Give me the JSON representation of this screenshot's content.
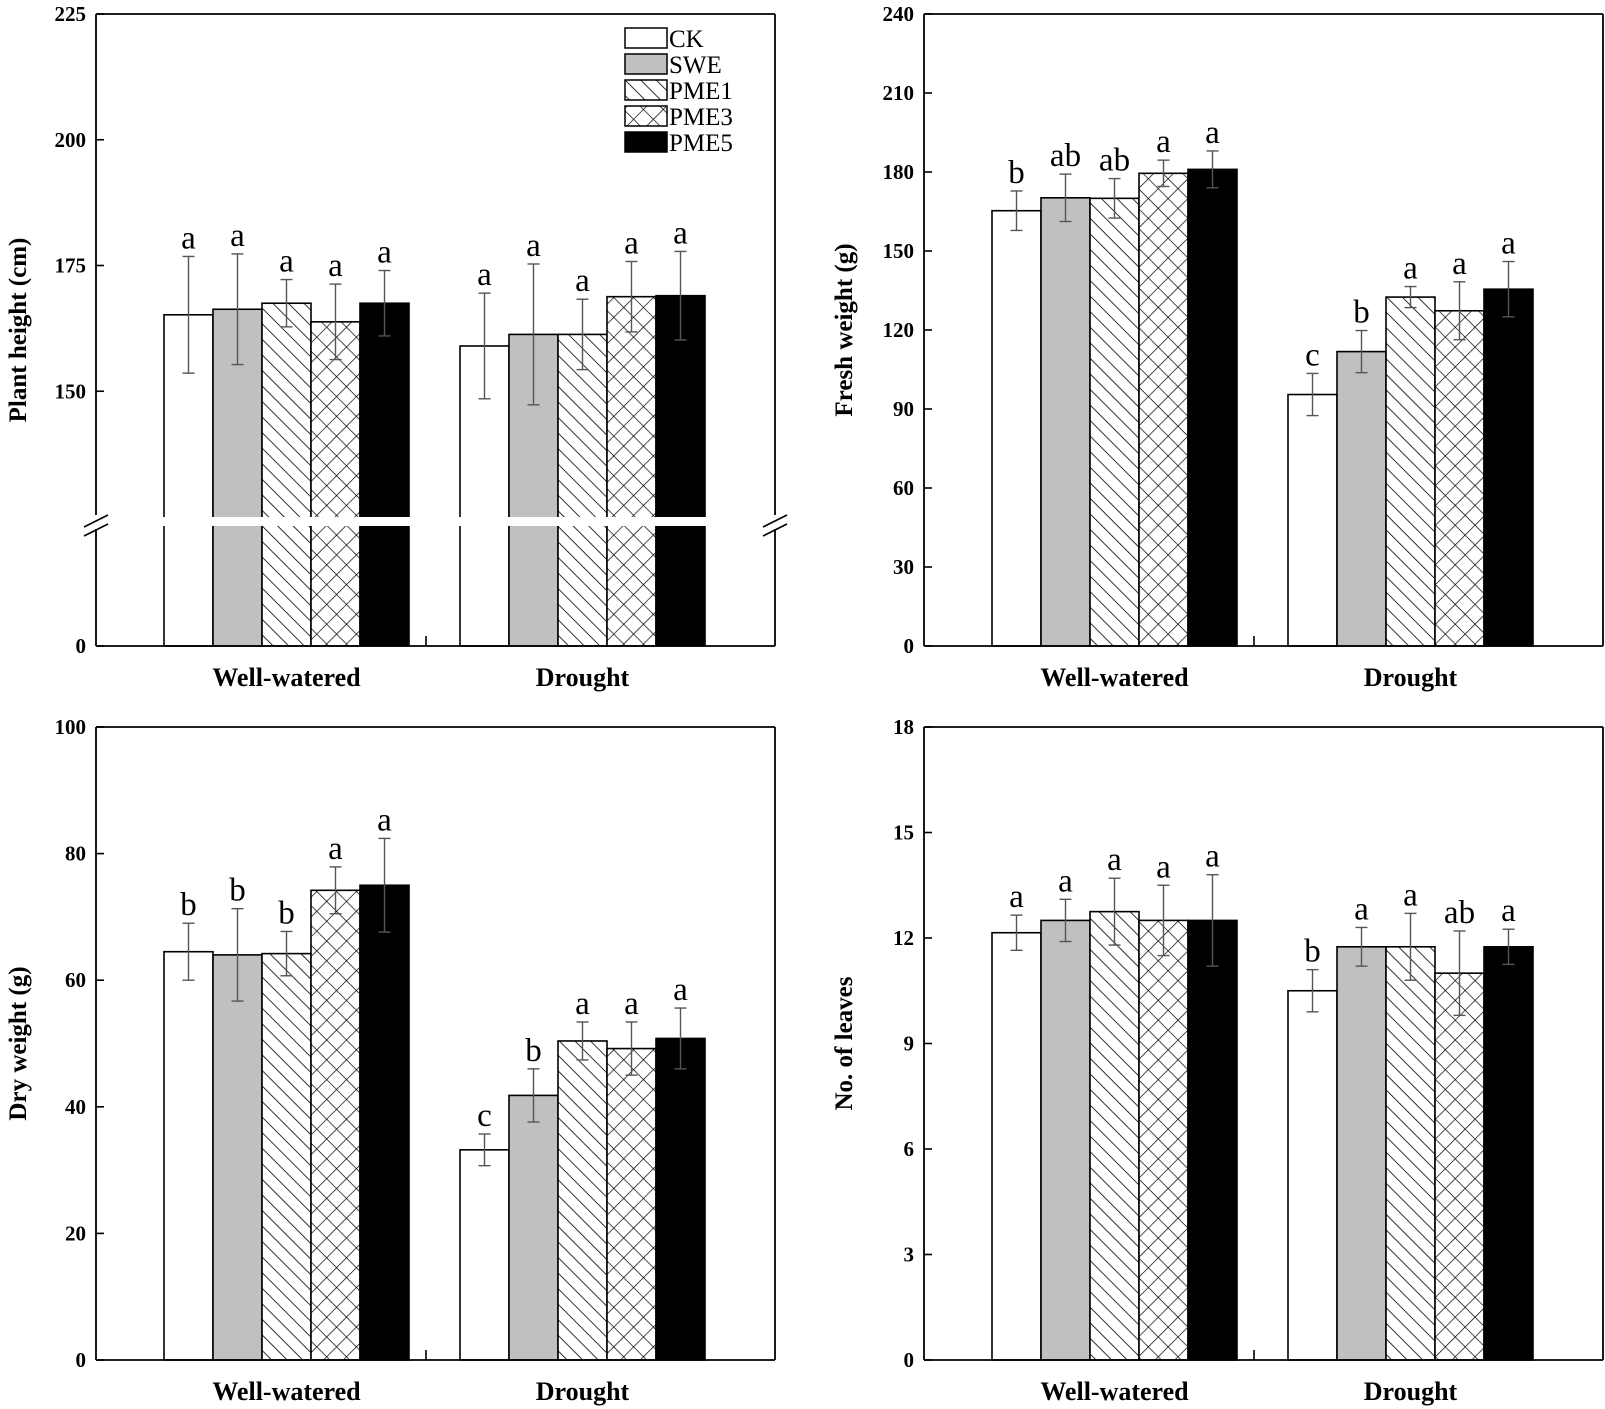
{
  "chart_data": [
    {
      "type": "bar",
      "panel": "top-left",
      "ylabel": "Plant height (cm)",
      "categories": [
        "Well-watered",
        "Drought"
      ],
      "axis_break": {
        "from": 0,
        "to": 125
      },
      "ylim": [
        0,
        225
      ],
      "yticks": [
        0,
        150,
        175,
        200,
        225
      ],
      "legend": {
        "position": "top-right",
        "entries": [
          "CK",
          "SWE",
          "PME1",
          "PME3",
          "PME5"
        ]
      },
      "series": [
        {
          "name": "CK",
          "values": [
            165.2,
            159.0
          ],
          "errors": [
            11.6,
            10.5
          ],
          "letters": [
            "a",
            "a"
          ]
        },
        {
          "name": "SWE",
          "values": [
            166.3,
            161.3
          ],
          "errors": [
            11.0,
            14.0
          ],
          "letters": [
            "a",
            "a"
          ]
        },
        {
          "name": "PME1",
          "values": [
            167.5,
            161.3
          ],
          "errors": [
            4.7,
            7.0
          ],
          "letters": [
            "a",
            "a"
          ]
        },
        {
          "name": "PME3",
          "values": [
            163.8,
            168.8
          ],
          "errors": [
            7.5,
            7.0
          ],
          "letters": [
            "a",
            "a"
          ]
        },
        {
          "name": "PME5",
          "values": [
            167.5,
            169.0
          ],
          "errors": [
            6.5,
            8.8
          ],
          "letters": [
            "a",
            "a"
          ]
        }
      ]
    },
    {
      "type": "bar",
      "panel": "top-right",
      "ylabel": "Fresh weight (g)",
      "categories": [
        "Well-watered",
        "Drought"
      ],
      "ylim": [
        0,
        240
      ],
      "yticks": [
        0,
        30,
        60,
        90,
        120,
        150,
        180,
        210,
        240
      ],
      "series": [
        {
          "name": "CK",
          "values": [
            165.3,
            95.5
          ],
          "errors": [
            7.5,
            8.0
          ],
          "letters": [
            "b",
            "c"
          ]
        },
        {
          "name": "SWE",
          "values": [
            170.2,
            111.8
          ],
          "errors": [
            9.0,
            8.0
          ],
          "letters": [
            "ab",
            "b"
          ]
        },
        {
          "name": "PME1",
          "values": [
            170.0,
            132.5
          ],
          "errors": [
            7.5,
            4.0
          ],
          "letters": [
            "ab",
            "a"
          ]
        },
        {
          "name": "PME3",
          "values": [
            179.5,
            127.3
          ],
          "errors": [
            5.0,
            11.0
          ],
          "letters": [
            "a",
            "a"
          ]
        },
        {
          "name": "PME5",
          "values": [
            181.0,
            135.5
          ],
          "errors": [
            7.0,
            10.5
          ],
          "letters": [
            "a",
            "a"
          ]
        }
      ]
    },
    {
      "type": "bar",
      "panel": "bottom-left",
      "ylabel": "Dry weight (g)",
      "categories": [
        "Well-watered",
        "Drought"
      ],
      "ylim": [
        0,
        100
      ],
      "yticks": [
        0,
        20,
        40,
        60,
        80,
        100
      ],
      "series": [
        {
          "name": "CK",
          "values": [
            64.5,
            33.2
          ],
          "errors": [
            4.5,
            2.5
          ],
          "letters": [
            "b",
            "c"
          ]
        },
        {
          "name": "SWE",
          "values": [
            64.0,
            41.8
          ],
          "errors": [
            7.3,
            4.2
          ],
          "letters": [
            "b",
            "b"
          ]
        },
        {
          "name": "PME1",
          "values": [
            64.2,
            50.4
          ],
          "errors": [
            3.5,
            3.0
          ],
          "letters": [
            "b",
            "a"
          ]
        },
        {
          "name": "PME3",
          "values": [
            74.2,
            49.2
          ],
          "errors": [
            3.7,
            4.2
          ],
          "letters": [
            "a",
            "a"
          ]
        },
        {
          "name": "PME5",
          "values": [
            75.0,
            50.8
          ],
          "errors": [
            7.4,
            4.8
          ],
          "letters": [
            "a",
            "a"
          ]
        }
      ]
    },
    {
      "type": "bar",
      "panel": "bottom-right",
      "ylabel": "No. of leaves",
      "categories": [
        "Well-watered",
        "Drought"
      ],
      "ylim": [
        0,
        18
      ],
      "yticks": [
        0,
        3,
        6,
        9,
        12,
        15,
        18
      ],
      "series": [
        {
          "name": "CK",
          "values": [
            12.15,
            10.5
          ],
          "errors": [
            0.5,
            0.6
          ],
          "letters": [
            "a",
            "b"
          ]
        },
        {
          "name": "SWE",
          "values": [
            12.5,
            11.75
          ],
          "errors": [
            0.6,
            0.55
          ],
          "letters": [
            "a",
            "a"
          ]
        },
        {
          "name": "PME1",
          "values": [
            12.75,
            11.75
          ],
          "errors": [
            0.95,
            0.95
          ],
          "letters": [
            "a",
            "a"
          ]
        },
        {
          "name": "PME3",
          "values": [
            12.5,
            11.0
          ],
          "errors": [
            1.0,
            1.2
          ],
          "letters": [
            "a",
            "ab"
          ]
        },
        {
          "name": "PME5",
          "values": [
            12.5,
            11.75
          ],
          "errors": [
            1.3,
            0.5
          ],
          "letters": [
            "a",
            "a"
          ]
        }
      ]
    }
  ]
}
